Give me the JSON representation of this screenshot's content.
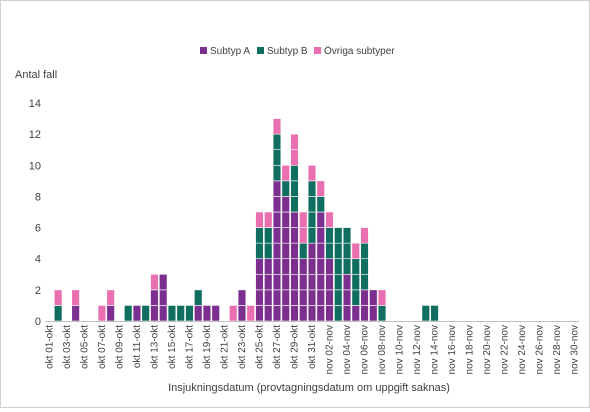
{
  "chart_data": {
    "type": "bar",
    "stacked": true,
    "unit_style": "stacked unit squares (one square per case)",
    "title": "",
    "ylabel": "Antal fall",
    "xlabel": "Insjukningsdatum (provtagningsdatum om uppgift saknas)",
    "ylim": [
      0,
      14
    ],
    "yticks": [
      0,
      2,
      4,
      6,
      8,
      10,
      12,
      14
    ],
    "grid": false,
    "legend_position": "top-center",
    "categories": [
      "okt 01",
      "okt 02",
      "okt 03",
      "okt 04",
      "okt 05",
      "okt 06",
      "okt 07",
      "okt 08",
      "okt 09",
      "okt 10",
      "okt 11",
      "okt 12",
      "okt 13",
      "okt 14",
      "okt 15",
      "okt 16",
      "okt 17",
      "okt 18",
      "okt 19",
      "okt 20",
      "okt 21",
      "okt 22",
      "okt 23",
      "okt 24",
      "okt 25",
      "okt 26",
      "okt 27",
      "okt 28",
      "okt 29",
      "okt 30",
      "okt 31",
      "nov 01",
      "nov 02",
      "nov 03",
      "nov 04",
      "nov 05",
      "nov 06",
      "nov 07",
      "nov 08",
      "nov 09",
      "nov 10",
      "nov 11",
      "nov 12",
      "nov 13",
      "nov 14",
      "nov 15",
      "nov 16",
      "nov 17",
      "nov 18",
      "nov 19",
      "nov 20",
      "nov 21",
      "nov 22",
      "nov 23",
      "nov 24",
      "nov 25",
      "nov 26",
      "nov 27",
      "nov 28",
      "nov 29",
      "nov 30"
    ],
    "tick_labels": [
      "okt 01-okt",
      "okt 03-okt",
      "okt 05-okt",
      "okt 07-okt",
      "okt 09-okt",
      "okt 11-okt",
      "okt 13-okt",
      "okt 15-okt",
      "okt 17-okt",
      "okt 19-okt",
      "okt 21-okt",
      "okt 23-okt",
      "okt 25-okt",
      "okt 27-okt",
      "okt 29-okt",
      "okt 31-okt",
      "nov 02-nov",
      "nov 04-nov",
      "nov 06-nov",
      "nov 08-nov",
      "nov 10-nov",
      "nov 12-nov",
      "nov 14-nov",
      "nov 16-nov",
      "nov 18-nov",
      "nov 20-nov",
      "nov 22-nov",
      "nov 24-nov",
      "nov 26-nov",
      "nov 28-nov",
      "nov 30-nov"
    ],
    "series": [
      {
        "name": "Subtyp A",
        "color": "#7b2f8e",
        "values": [
          0,
          0,
          0,
          1,
          0,
          0,
          0,
          1,
          0,
          0,
          1,
          0,
          2,
          3,
          0,
          0,
          0,
          1,
          1,
          1,
          0,
          0,
          2,
          0,
          4,
          4,
          9,
          8,
          7,
          4,
          5,
          7,
          4,
          0,
          3,
          1,
          2,
          2,
          0,
          0,
          0,
          0,
          0,
          0,
          0,
          0,
          0,
          0,
          0,
          0,
          0,
          0,
          0,
          0,
          0,
          0,
          0,
          0,
          0,
          0,
          0
        ]
      },
      {
        "name": "Subtyp B",
        "color": "#0f6e5f",
        "values": [
          0,
          1,
          0,
          0,
          0,
          0,
          0,
          0,
          0,
          1,
          0,
          1,
          0,
          0,
          1,
          1,
          1,
          1,
          0,
          0,
          0,
          0,
          0,
          0,
          2,
          2,
          3,
          1,
          3,
          1,
          4,
          1,
          2,
          6,
          3,
          3,
          3,
          0,
          1,
          0,
          0,
          0,
          0,
          1,
          1,
          0,
          0,
          0,
          0,
          0,
          0,
          0,
          0,
          0,
          0,
          0,
          0,
          0,
          0,
          0,
          0
        ]
      },
      {
        "name": "Övriga subtyper",
        "color": "#e96fb0",
        "values": [
          0,
          1,
          0,
          1,
          0,
          0,
          1,
          1,
          0,
          0,
          0,
          0,
          1,
          0,
          0,
          0,
          0,
          0,
          0,
          0,
          0,
          1,
          0,
          1,
          1,
          1,
          1,
          1,
          2,
          2,
          1,
          1,
          1,
          0,
          0,
          1,
          1,
          0,
          1,
          0,
          0,
          0,
          0,
          0,
          0,
          0,
          0,
          0,
          0,
          0,
          0,
          0,
          0,
          0,
          0,
          0,
          0,
          0,
          0,
          0,
          0
        ]
      }
    ]
  }
}
